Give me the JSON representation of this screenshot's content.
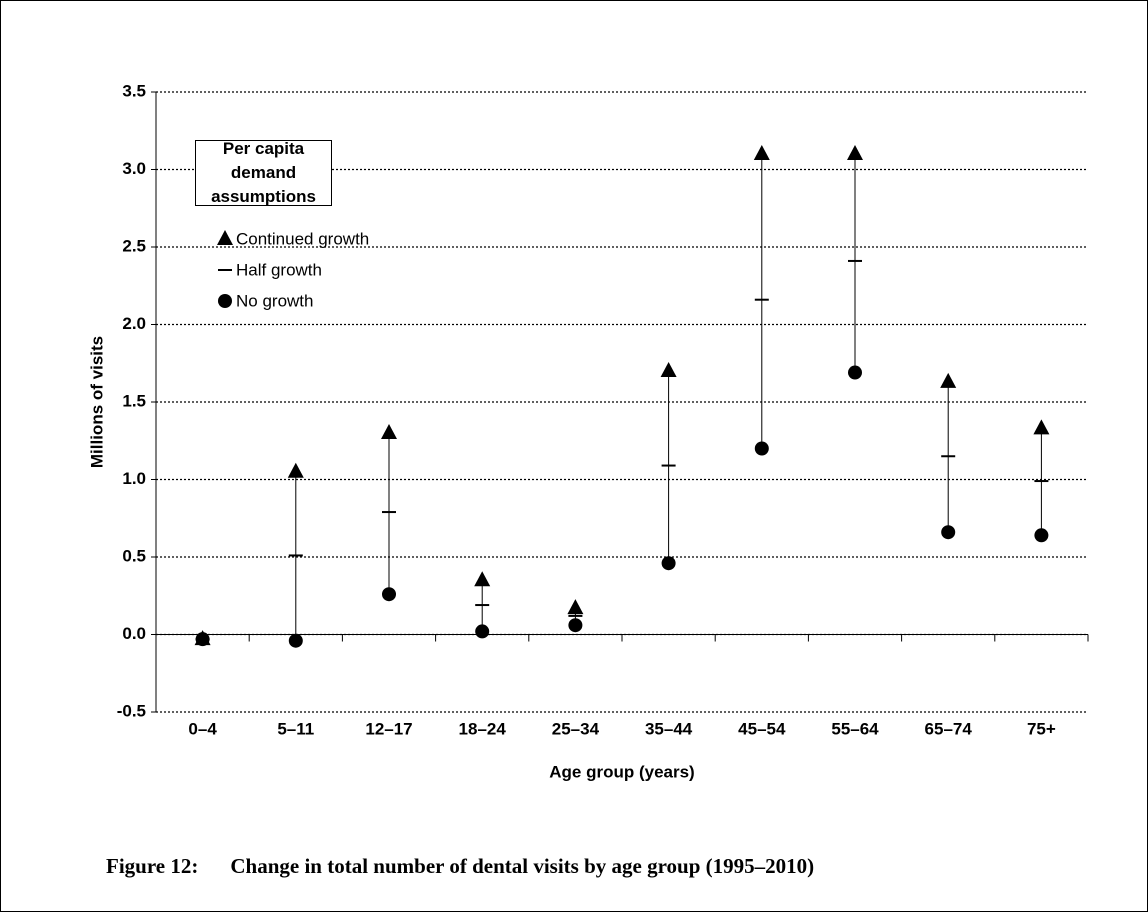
{
  "chart_data": {
    "type": "range",
    "caption_label": "Figure 12:",
    "caption": "Change in total number of dental visits by age group (1995–2010)",
    "x_label": "Age group (years)",
    "y_label": "Millions of visits",
    "legend_title": "Per capita demand assumptions",
    "categories": [
      "0–4",
      "5–11",
      "12–17",
      "18–24",
      "25–34",
      "35–44",
      "45–54",
      "55–64",
      "65–74",
      "75+"
    ],
    "series": [
      {
        "name": "Continued growth",
        "marker": "triangle",
        "color": "#000000",
        "values": [
          -0.03,
          1.05,
          1.3,
          0.35,
          0.17,
          1.7,
          3.1,
          3.1,
          1.63,
          1.33
        ]
      },
      {
        "name": "Half growth",
        "marker": "dash",
        "color": "#000000",
        "values": [
          -0.03,
          0.51,
          0.79,
          0.19,
          0.12,
          1.09,
          2.16,
          2.41,
          1.15,
          0.99
        ]
      },
      {
        "name": "No growth",
        "marker": "circle",
        "color": "#000000",
        "values": [
          -0.03,
          -0.04,
          0.26,
          0.02,
          0.06,
          0.46,
          1.2,
          1.69,
          0.66,
          0.64
        ]
      }
    ],
    "ylim": [
      -0.5,
      3.5
    ],
    "yticks": [
      -0.5,
      {
        "value": 0,
        "label": "0.0"
      },
      0.5,
      {
        "value": 1,
        "label": "1.0"
      },
      1.5,
      {
        "value": 2,
        "label": "2.0"
      },
      2.5,
      {
        "value": 3,
        "label": "3.0"
      },
      3.5
    ],
    "grid": true
  }
}
